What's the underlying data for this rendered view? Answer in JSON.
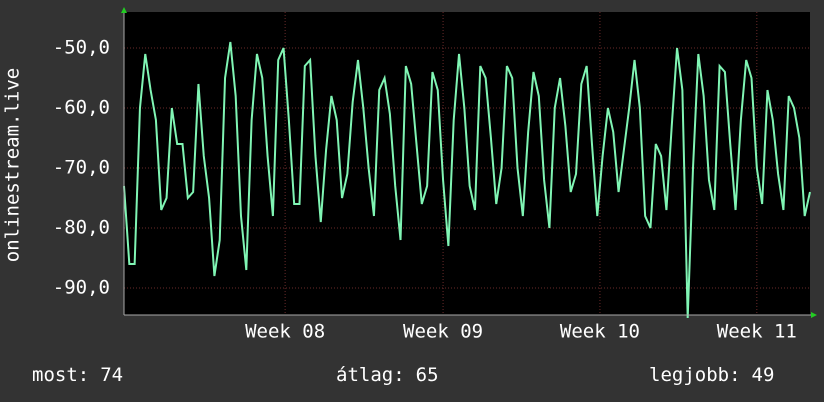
{
  "chart_data": {
    "type": "line",
    "y_label": "onlinestream.live",
    "series": [
      {
        "color": "#80f5b4",
        "values": [
          -73,
          -86,
          -86,
          -60,
          -51,
          -57,
          -62,
          -77,
          -75,
          -60,
          -66,
          -66,
          -75,
          -74,
          -56,
          -68,
          -75,
          -88,
          -82,
          -55,
          -49,
          -58,
          -78,
          -87,
          -62,
          -51,
          -55,
          -68,
          -78,
          -52,
          -50,
          -62,
          -76,
          -76,
          -53,
          -52,
          -68,
          -79,
          -67,
          -58,
          -62,
          -75,
          -71,
          -59,
          -52,
          -60,
          -70,
          -78,
          -57,
          -55,
          -61,
          -73,
          -82,
          -53,
          -56,
          -66,
          -76,
          -73,
          -54,
          -57,
          -72,
          -83,
          -62,
          -51,
          -60,
          -73,
          -77,
          -53,
          -55,
          -65,
          -76,
          -70,
          -53,
          -55,
          -70,
          -78,
          -64,
          -54,
          -58,
          -72,
          -80,
          -60,
          -55,
          -63,
          -74,
          -71,
          -56,
          -53,
          -66,
          -78,
          -68,
          -60,
          -64,
          -74,
          -67,
          -60,
          -52,
          -60,
          -78,
          -80,
          -66,
          -68,
          -77,
          -63,
          -50,
          -57,
          -95,
          -70,
          -51,
          -58,
          -72,
          -77,
          -53,
          -54,
          -66,
          -77,
          -62,
          -52,
          -55,
          -70,
          -76,
          -57,
          -62,
          -71,
          -77,
          -58,
          -60,
          -65,
          -78,
          -74
        ]
      }
    ],
    "xlim": [
      0,
      129
    ],
    "xticks": [
      {
        "value": 30.3,
        "label": "Week 08"
      },
      {
        "value": 60,
        "label": "Week 09"
      },
      {
        "value": 89.5,
        "label": "Week 10"
      },
      {
        "value": 119,
        "label": "Week 11"
      }
    ],
    "ylim": [
      -94.5,
      -44
    ],
    "yticks": [
      {
        "value": -90,
        "label": "-90,0"
      },
      {
        "value": -80,
        "label": "-80,0"
      },
      {
        "value": -70,
        "label": "-70,0"
      },
      {
        "value": -60,
        "label": "-60,0"
      },
      {
        "value": -50,
        "label": "-50,0"
      }
    ],
    "grid": true,
    "stats": [
      {
        "label": "most:",
        "value": 74
      },
      {
        "label": "átlag:",
        "value": 65
      },
      {
        "label": "legjobb:",
        "value": 49
      }
    ]
  }
}
